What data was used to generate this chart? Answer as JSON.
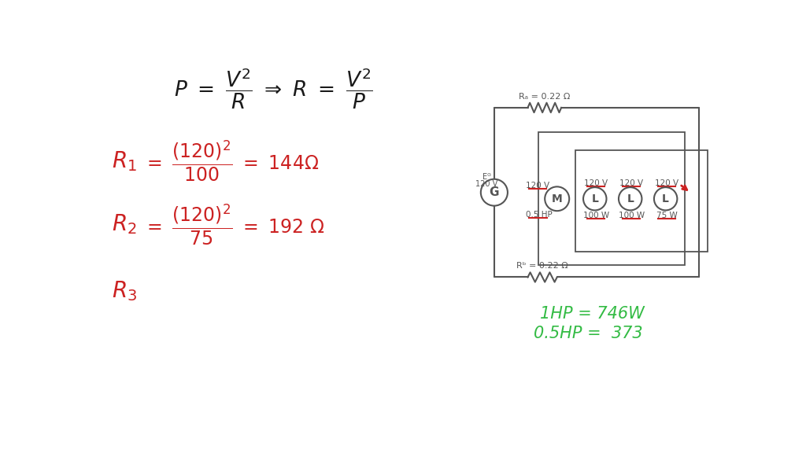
{
  "bg_color": "#ffffff",
  "red_color": "#cc2222",
  "black_color": "#1a1a1a",
  "green_color": "#33bb44",
  "gray_color": "#555555",
  "note1": "1HP = 746W",
  "note2": "0.5HP =  373",
  "circuit_Ra": "Rₐ = 0.22 Ω",
  "circuit_Rb": "Rᵇ = 0.22 Ω",
  "circuit_G": "G",
  "circuit_M_label": "M",
  "circuit_L_label": "L"
}
